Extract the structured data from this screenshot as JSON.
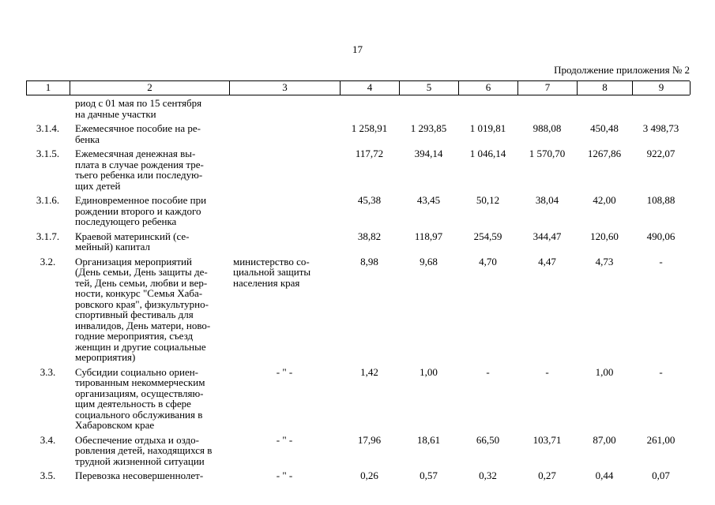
{
  "page": {
    "number": "17",
    "appendix_note": "Продолжение приложения № 2"
  },
  "table": {
    "column_numbers": [
      "1",
      "2",
      "3",
      "4",
      "5",
      "6",
      "7",
      "8",
      "9"
    ],
    "rows": [
      {
        "num": "",
        "desc": "риод с 01 мая по 15 сентября\nна дачные участки",
        "executor": "",
        "values": [
          "",
          "",
          "",
          "",
          "",
          ""
        ]
      },
      {
        "num": "3.1.4.",
        "desc": "Ежемесячное пособие на ре-\nбенка",
        "executor": "",
        "values": [
          "1 258,91",
          "1 293,85",
          "1 019,81",
          "988,08",
          "450,48",
          "3 498,73"
        ]
      },
      {
        "num": "3.1.5.",
        "desc": "Ежемесячная денежная вы-\nплата в случае рождения тре-\nтьего ребенка или последую-\nщих детей",
        "executor": "",
        "values": [
          "117,72",
          "394,14",
          "1 046,14",
          "1 570,70",
          "1267,86",
          "922,07"
        ]
      },
      {
        "num": "3.1.6.",
        "desc": "Единовременное пособие при\nрождении второго и каждого\nпоследующего ребенка",
        "executor": "",
        "values": [
          "45,38",
          "43,45",
          "50,12",
          "38,04",
          "42,00",
          "108,88"
        ]
      },
      {
        "num": "3.1.7.",
        "desc": "Краевой материнский (се-\nмейный) капитал",
        "executor": "",
        "values": [
          "38,82",
          "118,97",
          "254,59",
          "344,47",
          "120,60",
          "490,06"
        ]
      },
      {
        "num": "3.2.",
        "desc": "Организация мероприятий\n(День семьи, День защиты де-\nтей, День семьи, любви и вер-\nности, конкурс \"Семья Хаба-\nровского края\", физкультурно-\nспортивный фестиваль для\nинвалидов, День матери, ново-\nгодние мероприятия, съезд\nженщин и другие социальные\nмероприятия)",
        "executor": "министерство со-\nциальной защиты\nнаселения края",
        "values": [
          "8,98",
          "9,68",
          "4,70",
          "4,47",
          "4,73",
          "-"
        ]
      },
      {
        "num": "3.3.",
        "desc": "Субсидии социально ориен-\nтированным некоммерческим\nорганизациям, осуществляю-\nщим деятельность в сфере\nсоциального обслуживания в\nХабаровском крае",
        "executor": "- \" -",
        "values": [
          "1,42",
          "1,00",
          "-",
          "-",
          "1,00",
          "-"
        ]
      },
      {
        "num": "3.4.",
        "desc": "Обеспечение отдыха и оздо-\nровления детей, находящихся в\nтрудной жизненной ситуации",
        "executor": "- \" -",
        "values": [
          "17,96",
          "18,61",
          "66,50",
          "103,71",
          "87,00",
          "261,00"
        ]
      },
      {
        "num": "3.5.",
        "desc": "Перевозка несовершеннолет-",
        "executor": "- \" -",
        "values": [
          "0,26",
          "0,57",
          "0,32",
          "0,27",
          "0,44",
          "0,07"
        ]
      }
    ]
  }
}
